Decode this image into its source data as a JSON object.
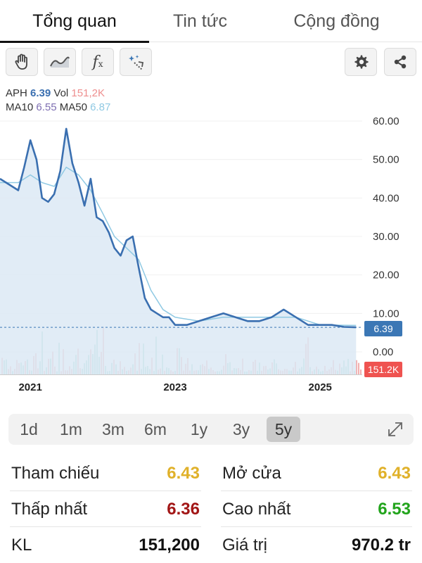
{
  "tabs": [
    {
      "label": "Tổng quan",
      "active": true
    },
    {
      "label": "Tin tức",
      "active": false
    },
    {
      "label": "Cộng đồng",
      "active": false
    }
  ],
  "toolbar": {
    "left_icons": [
      "hand-icon",
      "area-chart-icon",
      "function-fx-icon",
      "magic-wand-icon"
    ],
    "right_icons": [
      "gear-icon",
      "share-icon"
    ]
  },
  "legend": {
    "symbol": "APH",
    "price": "6.39",
    "vol_label": "Vol",
    "vol_value": "151,2K",
    "ma10_label": "MA10",
    "ma10_value": "6.55",
    "ma50_label": "MA50",
    "ma50_value": "6.87"
  },
  "chart_data": {
    "type": "line",
    "x_tick_labels": [
      "2021",
      "2023",
      "2025"
    ],
    "y_tick_labels": [
      "60.00",
      "50.00",
      "40.00",
      "30.00",
      "20.00",
      "10.00",
      "0.00"
    ],
    "ylim": [
      0,
      60
    ],
    "current_price_label": "6.39",
    "current_volume_label": "151.2K",
    "series": [
      {
        "key": "price",
        "color": "#3a6fb0",
        "x": [
          "2020-08",
          "2020-09",
          "2020-10",
          "2020-11",
          "2020-12",
          "2021-01",
          "2021-02",
          "2021-03",
          "2021-04",
          "2021-05",
          "2021-06",
          "2021-07",
          "2021-08",
          "2021-09",
          "2021-10",
          "2021-11",
          "2021-12",
          "2022-01",
          "2022-02",
          "2022-03",
          "2022-04",
          "2022-05",
          "2022-06",
          "2022-07",
          "2022-08",
          "2022-09",
          "2022-10",
          "2022-11",
          "2022-12",
          "2023-01",
          "2023-03",
          "2023-05",
          "2023-07",
          "2023-09",
          "2023-11",
          "2024-01",
          "2024-03",
          "2024-05",
          "2024-07",
          "2024-09",
          "2024-11",
          "2025-01",
          "2025-03",
          "2025-05",
          "2025-07"
        ],
        "values": [
          45,
          44,
          43,
          42,
          48,
          55,
          50,
          40,
          39,
          41,
          47,
          58,
          49,
          44,
          38,
          45,
          35,
          34,
          31,
          27,
          25,
          29,
          30,
          22,
          14,
          11,
          10,
          9,
          9,
          7,
          7,
          8,
          9,
          10,
          9,
          8,
          8,
          9,
          11,
          9,
          7,
          7,
          7,
          6.5,
          6.39
        ]
      },
      {
        "key": "ma50",
        "color": "#8fc9e3",
        "x": [
          "2020-08",
          "2020-11",
          "2021-01",
          "2021-03",
          "2021-05",
          "2021-07",
          "2021-09",
          "2021-11",
          "2022-01",
          "2022-03",
          "2022-05",
          "2022-07",
          "2022-09",
          "2022-11",
          "2023-01",
          "2023-05",
          "2023-09",
          "2024-01",
          "2024-05",
          "2024-09",
          "2025-01",
          "2025-07"
        ],
        "values": [
          44,
          44,
          46,
          44,
          43,
          48,
          46,
          42,
          36,
          30,
          27,
          24,
          16,
          11,
          9,
          8,
          9,
          9,
          9,
          9,
          7,
          6.87
        ]
      }
    ],
    "volume_caption": "Vol"
  },
  "periods": {
    "items": [
      "1d",
      "1m",
      "3m",
      "6m",
      "1y",
      "3y",
      "5y"
    ],
    "active": "5y"
  },
  "stats": {
    "reference_label": "Tham chiếu",
    "reference_value": "6.43",
    "open_label": "Mở cửa",
    "open_value": "6.43",
    "low_label": "Thấp nhất",
    "low_value": "6.36",
    "high_label": "Cao nhất",
    "high_value": "6.53",
    "volume_label": "KL",
    "volume_value": "151,200",
    "value_label": "Giá trị",
    "value_value": "970.2 tr"
  },
  "colors": {
    "price_line": "#3a6fb0",
    "ma50_line": "#8fc9e3",
    "area_fill": "#dce9f5",
    "volume_up": "#7fc8b8",
    "volume_down": "#ef9a9a",
    "reference": "#e0b12a",
    "low": "#a21616",
    "high": "#22a41c"
  }
}
